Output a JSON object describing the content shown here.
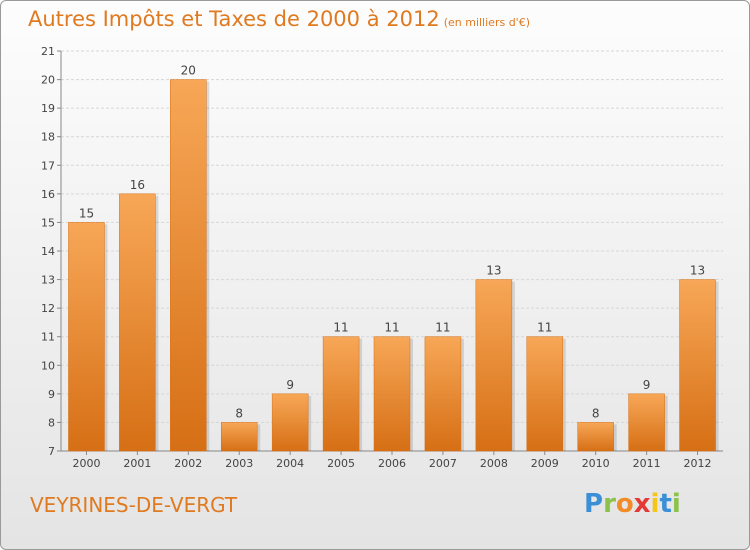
{
  "header": {
    "title": "Autres Impôts et Taxes de 2000 à 2012",
    "subtitle": "(en milliers d'€)"
  },
  "footer": {
    "place": "VEYRINES-DE-VERGT",
    "logo_letters": [
      "P",
      "r",
      "o",
      "x",
      "i",
      "t",
      "i"
    ],
    "logo_colors": [
      "#3a8fd6",
      "#8bc34a",
      "#f28c28",
      "#e53935",
      "#f5c518",
      "#3a8fd6",
      "#8bc34a"
    ]
  },
  "chart_data": {
    "type": "bar",
    "title": "Autres Impôts et Taxes de 2000 à 2012",
    "subtitle": "(en milliers d'€)",
    "categories": [
      "2000",
      "2001",
      "2002",
      "2003",
      "2004",
      "2005",
      "2006",
      "2007",
      "2008",
      "2009",
      "2010",
      "2011",
      "2012"
    ],
    "values": [
      15,
      16,
      20,
      8,
      9,
      11,
      11,
      11,
      13,
      11,
      8,
      9,
      13
    ],
    "ylim": [
      7,
      21
    ],
    "yticks": [
      7,
      8,
      9,
      10,
      11,
      12,
      13,
      14,
      15,
      16,
      17,
      18,
      19,
      20,
      21
    ],
    "grid": true,
    "bar_color": "#f08a2c",
    "bar_color_light": "#f7a757",
    "bar_color_dark": "#d66f15"
  }
}
